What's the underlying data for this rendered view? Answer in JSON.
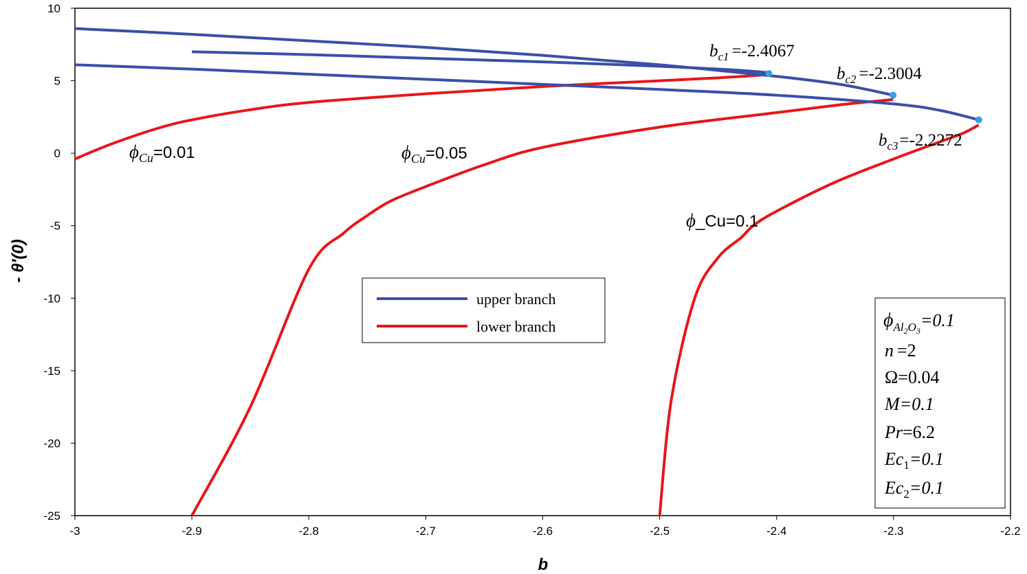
{
  "chart_data": {
    "type": "line",
    "xlabel": "b",
    "ylabel": "- θ′(0)",
    "xlim": [
      -3,
      -2.2
    ],
    "ylim": [
      -25,
      10
    ],
    "xticks": [
      "-3",
      "-2.9",
      "-2.8",
      "-2.7",
      "-2.6",
      "-2.5",
      "-2.4",
      "-2.3",
      "-2.2"
    ],
    "yticks": [
      "10",
      "5",
      "0",
      "-5",
      "-10",
      "-15",
      "-20",
      "-25"
    ],
    "grid": false,
    "legend_position": "center-left",
    "legend": [
      {
        "label": "upper branch",
        "color": "#3a4fa8"
      },
      {
        "label": "lower branch",
        "color": "#e8161b"
      }
    ],
    "series": [
      {
        "name": "upper branch",
        "case": "φCu=0.01",
        "color": "#3a4fa8",
        "x": [
          -2.9,
          -2.8,
          -2.7,
          -2.6,
          -2.5,
          -2.45,
          -2.42,
          -2.4067
        ],
        "y": [
          7.0,
          6.8,
          6.55,
          6.3,
          6.0,
          5.8,
          5.65,
          5.55
        ]
      },
      {
        "name": "lower branch",
        "case": "φCu=0.01",
        "color": "#e8161b",
        "x": [
          -3.0,
          -2.97,
          -2.93,
          -2.9,
          -2.85,
          -2.8,
          -2.7,
          -2.6,
          -2.5,
          -2.45,
          -2.42,
          -2.4067
        ],
        "y": [
          -0.4,
          0.6,
          1.7,
          2.3,
          3.0,
          3.5,
          4.1,
          4.6,
          5.0,
          5.2,
          5.35,
          5.45
        ]
      },
      {
        "name": "upper branch",
        "case": "φCu=0.05",
        "color": "#3a4fa8",
        "x": [
          -3.0,
          -2.9,
          -2.8,
          -2.7,
          -2.6,
          -2.5,
          -2.4,
          -2.35,
          -2.32,
          -2.3004
        ],
        "y": [
          8.6,
          8.2,
          7.75,
          7.3,
          6.75,
          6.1,
          5.3,
          4.8,
          4.35,
          4.0
        ]
      },
      {
        "name": "lower branch",
        "case": "φCu=0.05",
        "color": "#e8161b",
        "x": [
          -2.9,
          -2.85,
          -2.8,
          -2.77,
          -2.75,
          -2.73,
          -2.7,
          -2.65,
          -2.6,
          -2.5,
          -2.4,
          -2.35,
          -2.32,
          -2.3004
        ],
        "y": [
          -25,
          -17.5,
          -8.0,
          -5.5,
          -4.3,
          -3.3,
          -2.3,
          -0.8,
          0.4,
          1.8,
          2.8,
          3.3,
          3.55,
          3.7
        ]
      },
      {
        "name": "upper branch",
        "case": "φCu=0.1",
        "color": "#3a4fa8",
        "x": [
          -3.0,
          -2.9,
          -2.8,
          -2.7,
          -2.6,
          -2.5,
          -2.4,
          -2.3,
          -2.26,
          -2.2272
        ],
        "y": [
          6.1,
          5.8,
          5.45,
          5.1,
          4.75,
          4.4,
          4.0,
          3.4,
          2.95,
          2.3
        ]
      },
      {
        "name": "lower branch",
        "case": "φCu=0.1",
        "color": "#e8161b",
        "x": [
          -2.5,
          -2.49,
          -2.47,
          -2.45,
          -2.43,
          -2.42,
          -2.4,
          -2.35,
          -2.3,
          -2.26,
          -2.24,
          -2.2272
        ],
        "y": [
          -25,
          -17.0,
          -10.0,
          -7.2,
          -5.8,
          -5.0,
          -4.0,
          -2.0,
          -0.4,
          0.8,
          1.4,
          1.95
        ]
      }
    ],
    "critical_points": [
      {
        "x": -2.4067,
        "y": 5.5,
        "label": "=-2.4067",
        "sub": "c1"
      },
      {
        "x": -2.3004,
        "y": 4.0,
        "label": "=-2.3004",
        "sub": "c2"
      },
      {
        "x": -2.2272,
        "y": 2.3,
        "label": "=-2.2272",
        "sub": "c3"
      }
    ],
    "curve_labels": [
      {
        "text": "=0.01",
        "sub": "Cu"
      },
      {
        "text": "=0.05",
        "sub": "Cu"
      },
      {
        "text": "_Cu=0.1"
      }
    ],
    "params": {
      "phi_al2o3": "=0.1",
      "n": "=2",
      "omega": "Ω=0.04",
      "M": "=0.1",
      "Pr": "=6.2",
      "Ec1": "=0.1",
      "Ec2": "=0.1"
    }
  }
}
